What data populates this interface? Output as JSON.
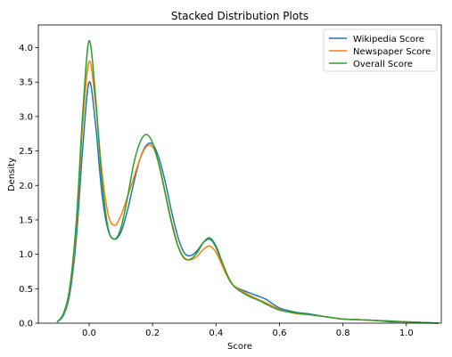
{
  "chart_data": {
    "type": "line",
    "title": "Stacked Distribution Plots",
    "xlabel": "Score",
    "ylabel": "Density",
    "xlim": [
      -0.16,
      1.11
    ],
    "ylim": [
      0,
      4.33
    ],
    "xticks": [
      "0.0",
      "0.2",
      "0.4",
      "0.6",
      "0.8",
      "1.0"
    ],
    "yticks": [
      "0.0",
      "0.5",
      "1.0",
      "1.5",
      "2.0",
      "2.5",
      "3.0",
      "3.5",
      "4.0"
    ],
    "grid": false,
    "legend_position": "top-right",
    "series": [
      {
        "name": "Wikipedia Score",
        "color": "#1f77b4",
        "x": [
          -0.1,
          -0.08,
          -0.06,
          -0.04,
          -0.02,
          0.0,
          0.02,
          0.04,
          0.06,
          0.08,
          0.1,
          0.12,
          0.14,
          0.16,
          0.18,
          0.2,
          0.22,
          0.24,
          0.26,
          0.28,
          0.3,
          0.32,
          0.34,
          0.36,
          0.38,
          0.4,
          0.42,
          0.44,
          0.46,
          0.5,
          0.54,
          0.56,
          0.6,
          0.65,
          0.7,
          0.75,
          0.8,
          0.85,
          0.9,
          0.95,
          1.0,
          1.05,
          1.1
        ],
        "y": [
          0.02,
          0.12,
          0.45,
          1.25,
          2.55,
          3.5,
          2.9,
          1.9,
          1.35,
          1.22,
          1.32,
          1.62,
          2.02,
          2.38,
          2.58,
          2.6,
          2.4,
          2.05,
          1.62,
          1.25,
          1.02,
          0.98,
          1.05,
          1.17,
          1.22,
          1.1,
          0.85,
          0.64,
          0.53,
          0.45,
          0.38,
          0.34,
          0.22,
          0.16,
          0.13,
          0.09,
          0.06,
          0.05,
          0.04,
          0.02,
          0.02,
          0.01,
          0.0
        ]
      },
      {
        "name": "Newspaper Score",
        "color": "#ff7f0e",
        "x": [
          -0.1,
          -0.08,
          -0.06,
          -0.04,
          -0.02,
          0.0,
          0.02,
          0.04,
          0.06,
          0.08,
          0.1,
          0.12,
          0.14,
          0.16,
          0.18,
          0.2,
          0.22,
          0.24,
          0.26,
          0.28,
          0.3,
          0.32,
          0.34,
          0.36,
          0.38,
          0.4,
          0.42,
          0.44,
          0.46,
          0.5,
          0.54,
          0.56,
          0.6,
          0.65,
          0.7,
          0.75,
          0.8,
          0.85,
          0.9,
          0.95,
          1.0,
          1.05,
          1.1
        ],
        "y": [
          0.02,
          0.14,
          0.52,
          1.42,
          2.9,
          3.8,
          3.2,
          2.22,
          1.58,
          1.42,
          1.56,
          1.82,
          2.1,
          2.38,
          2.56,
          2.56,
          2.32,
          1.9,
          1.48,
          1.13,
          0.95,
          0.92,
          0.97,
          1.07,
          1.12,
          1.03,
          0.83,
          0.64,
          0.53,
          0.42,
          0.33,
          0.29,
          0.2,
          0.14,
          0.12,
          0.09,
          0.06,
          0.05,
          0.04,
          0.03,
          0.02,
          0.01,
          0.0
        ]
      },
      {
        "name": "Overall Score",
        "color": "#2ca02c",
        "x": [
          -0.1,
          -0.08,
          -0.06,
          -0.04,
          -0.02,
          0.0,
          0.02,
          0.04,
          0.06,
          0.08,
          0.1,
          0.12,
          0.14,
          0.16,
          0.18,
          0.2,
          0.22,
          0.24,
          0.26,
          0.28,
          0.3,
          0.32,
          0.34,
          0.36,
          0.38,
          0.4,
          0.42,
          0.44,
          0.46,
          0.5,
          0.54,
          0.56,
          0.6,
          0.65,
          0.7,
          0.75,
          0.8,
          0.85,
          0.9,
          0.95,
          1.0,
          1.05,
          1.1
        ],
        "y": [
          0.02,
          0.15,
          0.55,
          1.5,
          3.05,
          4.1,
          3.3,
          2.1,
          1.38,
          1.22,
          1.38,
          1.8,
          2.3,
          2.62,
          2.74,
          2.62,
          2.3,
          1.88,
          1.45,
          1.12,
          0.94,
          0.93,
          1.02,
          1.17,
          1.24,
          1.12,
          0.88,
          0.66,
          0.52,
          0.4,
          0.32,
          0.27,
          0.19,
          0.15,
          0.12,
          0.09,
          0.06,
          0.05,
          0.04,
          0.03,
          0.02,
          0.01,
          0.0
        ]
      }
    ]
  }
}
